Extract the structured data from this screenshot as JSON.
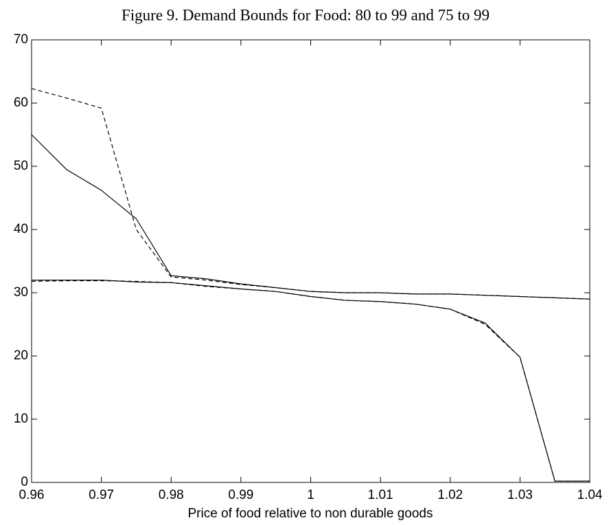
{
  "chart_data": {
    "type": "line",
    "title": "Figure 9. Demand Bounds for Food: 80 to 99 and 75 to 99",
    "x_label": "Price of food relative to non durable goods",
    "x": [
      0.96,
      0.965,
      0.97,
      0.975,
      0.98,
      0.985,
      0.99,
      0.995,
      1.0,
      1.005,
      1.01,
      1.015,
      1.02,
      1.025,
      1.03,
      1.035,
      1.04
    ],
    "xlim": [
      0.96,
      1.04
    ],
    "xticks": [
      0.96,
      0.97,
      0.98,
      0.99,
      1,
      1.01,
      1.02,
      1.03,
      1.04
    ],
    "ylim": [
      0,
      70
    ],
    "yticks": [
      0,
      10,
      20,
      30,
      40,
      50,
      60,
      70
    ],
    "series": [
      {
        "color": "#000000",
        "dash": "solid",
        "values": [
          55,
          49.5,
          46.2,
          41.7,
          32.7,
          32.2,
          31.4,
          30.8,
          30.2,
          30.0,
          30.0,
          29.8,
          29.8,
          29.6,
          29.4,
          29.2,
          29.0
        ]
      },
      {
        "color": "#000000",
        "dash": "solid",
        "values": [
          32.0,
          32.0,
          32.0,
          31.7,
          31.6,
          31.1,
          30.6,
          30.2,
          29.4,
          28.8,
          28.6,
          28.2,
          27.4,
          25.2,
          19.8,
          0.2,
          0.2
        ]
      },
      {
        "color": "#000000",
        "dash": "dashed",
        "values": [
          62.3,
          60.8,
          59.2,
          40.0,
          32.5,
          32.0,
          31.3,
          30.8,
          30.2,
          30.0,
          30.0,
          29.8,
          29.8,
          29.6,
          29.4,
          29.2,
          29.0
        ]
      },
      {
        "color": "#000000",
        "dash": "dashed",
        "values": [
          31.8,
          31.9,
          31.9,
          31.8,
          31.6,
          31.0,
          30.6,
          30.2,
          29.4,
          28.8,
          28.6,
          28.2,
          27.4,
          25.0,
          19.8,
          0.2,
          0.2
        ]
      }
    ]
  }
}
